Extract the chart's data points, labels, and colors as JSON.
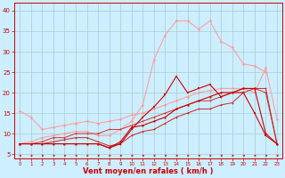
{
  "xlabel": "Vent moyen/en rafales ( km/h )",
  "x": [
    0,
    1,
    2,
    3,
    4,
    5,
    6,
    7,
    8,
    9,
    10,
    11,
    12,
    13,
    14,
    15,
    16,
    17,
    18,
    19,
    20,
    21,
    22,
    23
  ],
  "line1": [
    7.5,
    7.5,
    7.5,
    7.5,
    7.5,
    7.5,
    7.5,
    7.5,
    6.5,
    7.5,
    11,
    14,
    16.5,
    19.5,
    24,
    20,
    21,
    22,
    19,
    20,
    20,
    15,
    9.5,
    7.5
  ],
  "line2": [
    7.5,
    7.5,
    7.5,
    7.5,
    7.5,
    7.5,
    7.5,
    7.5,
    6.5,
    8,
    11.5,
    12,
    13,
    14,
    16,
    17,
    18,
    19,
    20,
    20,
    21,
    21,
    10,
    7.5
  ],
  "line3": [
    7.5,
    7.5,
    8,
    9,
    9,
    10,
    10,
    10,
    11,
    11,
    12,
    13,
    14,
    15,
    16,
    17,
    18,
    18,
    19,
    20,
    21,
    21,
    20,
    7.5
  ],
  "line4": [
    15.5,
    14,
    11,
    11.5,
    12,
    12.5,
    13,
    12.5,
    13,
    13.5,
    14.5,
    15,
    16,
    17,
    18,
    19,
    20,
    20.5,
    21,
    21,
    21,
    20,
    26,
    13.5
  ],
  "line5": [
    7.5,
    8,
    9,
    9.5,
    10,
    10.5,
    10.5,
    9.5,
    9.5,
    11,
    13,
    17,
    28,
    34,
    37.5,
    37.5,
    35.5,
    37.5,
    32.5,
    31,
    27,
    26.5,
    25,
    null
  ],
  "line6": [
    7.5,
    7.5,
    7.5,
    8,
    8.5,
    9,
    9,
    8,
    7,
    7.5,
    9.5,
    10.5,
    11,
    12.5,
    14,
    15,
    16,
    16,
    17,
    17.5,
    20,
    21,
    21,
    7.5
  ],
  "bg_color": "#cceeff",
  "grid_color": "#aacccc",
  "line1_color": "#cc0000",
  "line2_color": "#cc0000",
  "line3_color": "#cc3333",
  "line4_color": "#ff9999",
  "line5_color": "#ff9999",
  "line6_color": "#cc2222",
  "ylim": [
    4,
    42
  ],
  "xlim": [
    -0.5,
    23.5
  ],
  "yticks": [
    5,
    10,
    15,
    20,
    25,
    30,
    35,
    40
  ],
  "xticks": [
    0,
    1,
    2,
    3,
    4,
    5,
    6,
    7,
    8,
    9,
    10,
    11,
    12,
    13,
    14,
    15,
    16,
    17,
    18,
    19,
    20,
    21,
    22,
    23
  ]
}
